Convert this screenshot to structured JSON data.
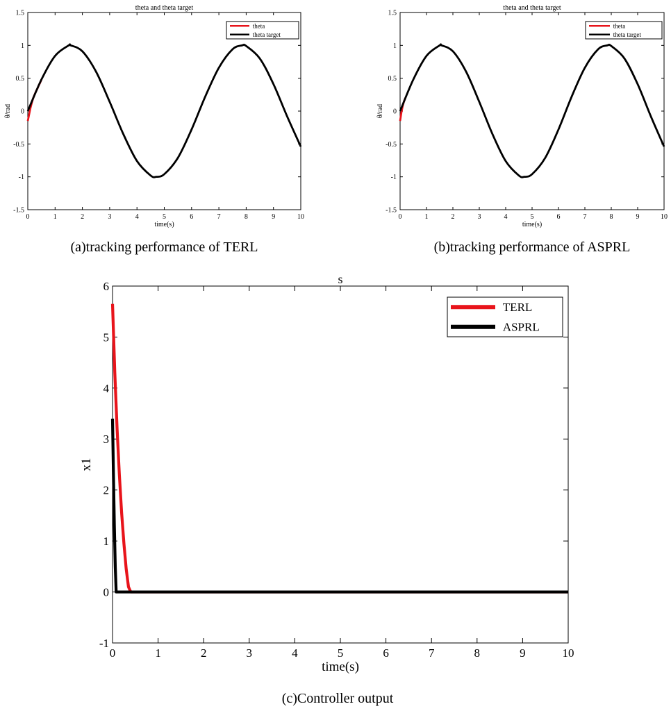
{
  "chart_data": [
    {
      "id": "a",
      "type": "line",
      "title": "theta and theta target",
      "xlabel": "time(s)",
      "ylabel": "θ/rad",
      "xlim": [
        0,
        10
      ],
      "ylim": [
        -1.5,
        1.5
      ],
      "xticks": [
        "0",
        "1",
        "2",
        "3",
        "4",
        "5",
        "6",
        "7",
        "8",
        "9",
        "10"
      ],
      "yticks": [
        "-1.5",
        "-1",
        "-0.5",
        "0",
        "0.5",
        "1",
        "1.5"
      ],
      "grid": false,
      "legend_position": "top-right",
      "caption": "(a)tracking performance of TERL",
      "series": [
        {
          "name": "theta",
          "color": "#e8141b",
          "x": [
            0,
            0.05,
            0.1,
            0.15,
            0.2,
            0.25,
            0.3,
            0.35,
            0.4,
            0.45,
            0.5
          ],
          "y": [
            -0.15,
            -0.05,
            0.05,
            0.13,
            0.2,
            0.25,
            0.3,
            0.34,
            0.39,
            0.43,
            0.48
          ]
        },
        {
          "name": "theta target",
          "color": "#000000",
          "x": [
            0,
            0.5,
            1,
            1.5,
            1.57,
            2,
            2.5,
            3,
            3.5,
            4,
            4.5,
            4.71,
            5,
            5.5,
            6,
            6.5,
            7,
            7.5,
            7.85,
            8,
            8.5,
            9,
            9.5,
            10
          ],
          "y": [
            0,
            0.48,
            0.84,
            1.0,
            1.0,
            0.91,
            0.6,
            0.14,
            -0.35,
            -0.76,
            -0.98,
            -1.0,
            -0.96,
            -0.71,
            -0.28,
            0.22,
            0.66,
            0.94,
            1.0,
            0.99,
            0.8,
            0.41,
            -0.08,
            -0.54
          ]
        }
      ]
    },
    {
      "id": "b",
      "type": "line",
      "title": "theta and theta target",
      "xlabel": "time(s)",
      "ylabel": "θ/rad",
      "xlim": [
        0,
        10
      ],
      "ylim": [
        -1.5,
        1.5
      ],
      "xticks": [
        "0",
        "1",
        "2",
        "3",
        "4",
        "5",
        "6",
        "7",
        "8",
        "9",
        "10"
      ],
      "yticks": [
        "-1.5",
        "-1",
        "-0.5",
        "0",
        "0.5",
        "1",
        "1.5"
      ],
      "grid": false,
      "legend_position": "top-right",
      "caption": "(b)tracking performance of ASPRL",
      "series": [
        {
          "name": "theta",
          "color": "#e8141b",
          "x": [
            0,
            0.05,
            0.1,
            0.15,
            0.2
          ],
          "y": [
            -0.15,
            -0.02,
            0.08,
            0.15,
            0.2
          ]
        },
        {
          "name": "theta target",
          "color": "#000000",
          "x": [
            0,
            0.5,
            1,
            1.5,
            1.57,
            2,
            2.5,
            3,
            3.5,
            4,
            4.5,
            4.71,
            5,
            5.5,
            6,
            6.5,
            7,
            7.5,
            7.85,
            8,
            8.5,
            9,
            9.5,
            10
          ],
          "y": [
            0,
            0.48,
            0.84,
            1.0,
            1.0,
            0.91,
            0.6,
            0.14,
            -0.35,
            -0.76,
            -0.98,
            -1.0,
            -0.96,
            -0.71,
            -0.28,
            0.22,
            0.66,
            0.94,
            1.0,
            0.99,
            0.8,
            0.41,
            -0.08,
            -0.54
          ]
        }
      ]
    },
    {
      "id": "c",
      "type": "line",
      "title": "s",
      "xlabel": "time(s)",
      "ylabel": "x1",
      "xlim": [
        0,
        10
      ],
      "ylim": [
        -1,
        6
      ],
      "xticks": [
        "0",
        "1",
        "2",
        "3",
        "4",
        "5",
        "6",
        "7",
        "8",
        "9",
        "10"
      ],
      "yticks": [
        "-1",
        "0",
        "1",
        "2",
        "3",
        "4",
        "5",
        "6"
      ],
      "grid": false,
      "legend_position": "top-right",
      "caption": "(c)Controller output",
      "series": [
        {
          "name": "TERL",
          "color": "#e8141b",
          "x": [
            0,
            0.05,
            0.1,
            0.15,
            0.2,
            0.25,
            0.3,
            0.35,
            0.4,
            10
          ],
          "y": [
            5.65,
            4.3,
            3.2,
            2.3,
            1.55,
            0.95,
            0.45,
            0.1,
            0,
            0
          ]
        },
        {
          "name": "ASPRL",
          "color": "#000000",
          "x": [
            0,
            0.02,
            0.04,
            0.06,
            0.08,
            10
          ],
          "y": [
            3.4,
            2.3,
            1.3,
            0.5,
            0,
            0
          ]
        }
      ]
    }
  ]
}
